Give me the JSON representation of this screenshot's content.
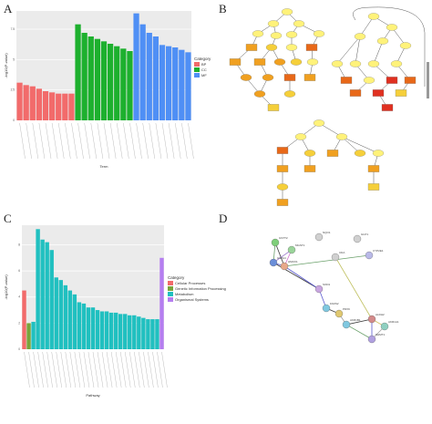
{
  "panels": {
    "a": "A",
    "b": "B",
    "c": "C",
    "d": "D"
  },
  "chart_data": [
    {
      "type": "bar",
      "panel": "A",
      "xlabel": "Term",
      "ylabel": "-log10(P-value)",
      "ylim": [
        0,
        9
      ],
      "yticks": [
        0,
        2.5,
        5,
        7.5
      ],
      "grid": true,
      "legend": {
        "title": "Category",
        "position": "right",
        "items": [
          {
            "name": "BP",
            "color": "#f26b6b"
          },
          {
            "name": "CC",
            "color": "#1db02e"
          },
          {
            "name": "MF",
            "color": "#4f8ff5"
          }
        ]
      },
      "series": [
        {
          "name": "BP",
          "color": "#f26b6b",
          "values": [
            3.1,
            2.9,
            2.8,
            2.6,
            2.4,
            2.3,
            2.2,
            2.2,
            2.2
          ]
        },
        {
          "name": "CC",
          "color": "#1db02e",
          "values": [
            7.9,
            7.2,
            6.9,
            6.7,
            6.5,
            6.3,
            6.1,
            5.9,
            5.7
          ]
        },
        {
          "name": "MF",
          "color": "#4f8ff5",
          "values": [
            8.8,
            7.9,
            7.2,
            6.9,
            6.2,
            6.1,
            6.0,
            5.8,
            5.6
          ]
        }
      ]
    },
    {
      "type": "bar",
      "panel": "C",
      "xlabel": "Pathway",
      "ylabel": "-log10(P-value)",
      "ylim": [
        0,
        9.5
      ],
      "yticks": [
        0,
        2,
        4,
        6,
        8
      ],
      "grid": true,
      "legend": {
        "title": "Category",
        "position": "right",
        "items": [
          {
            "name": "Cellular Processes",
            "color": "#f26b6b"
          },
          {
            "name": "Genetic Information Processing",
            "color": "#7aa43b"
          },
          {
            "name": "Metabolism",
            "color": "#20c0c0"
          },
          {
            "name": "Organismal Systems",
            "color": "#b57ef0"
          }
        ]
      },
      "series": [
        {
          "name": "Cellular Processes",
          "color": "#f26b6b",
          "values": [
            4.5
          ]
        },
        {
          "name": "Genetic Information Processing",
          "color": "#7aa43b",
          "values": [
            2.0
          ]
        },
        {
          "name": "Metabolism",
          "color": "#20c0c0",
          "values": [
            2.1,
            9.2,
            8.4,
            8.2,
            7.6,
            5.5,
            5.3,
            4.9,
            4.5,
            4.2,
            3.6,
            3.5,
            3.2,
            3.2,
            3.0,
            2.9,
            2.9,
            2.8,
            2.8,
            2.7,
            2.7,
            2.6,
            2.6,
            2.5,
            2.4,
            2.3,
            2.3,
            2.3
          ]
        },
        {
          "name": "Organismal Systems",
          "color": "#b57ef0",
          "values": [
            7.0
          ]
        }
      ]
    }
  ],
  "pathway_graph": {
    "node_colors": [
      "#fff27a",
      "#f5cf3a",
      "#f0a020",
      "#e86818",
      "#e03020"
    ]
  },
  "network": {
    "genes": [
      "GSTT2",
      "MGST1",
      "NQO1",
      "GGT1",
      "CYP2E1",
      "GSTA4",
      "HMOX1",
      "CDA",
      "SOD1",
      "FADS2",
      "PDXK",
      "AKR1B1",
      "ALDH2",
      "AKR1A1",
      "SHMT1"
    ]
  }
}
